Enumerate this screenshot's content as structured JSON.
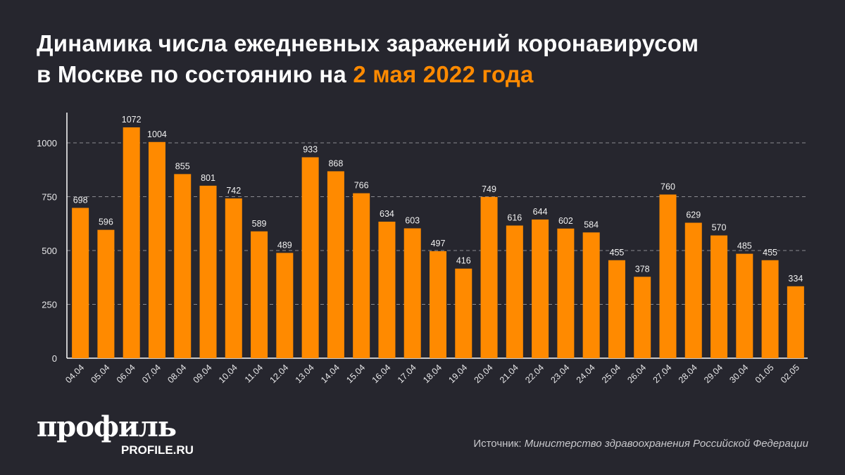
{
  "title": {
    "line1": "Динамика числа ежедневных заражений коронавирусом",
    "line2_prefix": "в Москве по состоянию на ",
    "line2_highlight": "2 мая 2022 года"
  },
  "chart_data": {
    "type": "bar",
    "categories": [
      "04.04",
      "05.04",
      "06.04",
      "07.04",
      "08.04",
      "09.04",
      "10.04",
      "11.04",
      "12.04",
      "13.04",
      "14.04",
      "15.04",
      "16.04",
      "17.04",
      "18.04",
      "19.04",
      "20.04",
      "21.04",
      "22.04",
      "23.04",
      "24.04",
      "25.04",
      "26.04",
      "27.04",
      "28.04",
      "29.04",
      "30.04",
      "01.05",
      "02.05"
    ],
    "values": [
      698,
      596,
      1072,
      1004,
      855,
      801,
      742,
      589,
      489,
      933,
      868,
      766,
      634,
      603,
      497,
      416,
      749,
      616,
      644,
      602,
      584,
      455,
      378,
      760,
      629,
      570,
      485,
      455,
      334
    ],
    "yticks": [
      0,
      250,
      500,
      750,
      1000
    ],
    "ylim": [
      0,
      1150
    ],
    "grid": true,
    "bar_color": "#ff8a00"
  },
  "logo": {
    "main": "профиль",
    "sub": "PROFILE.RU"
  },
  "source": {
    "label": "Источник: ",
    "value": "Министерство здравоохранения Российской Федерации"
  }
}
